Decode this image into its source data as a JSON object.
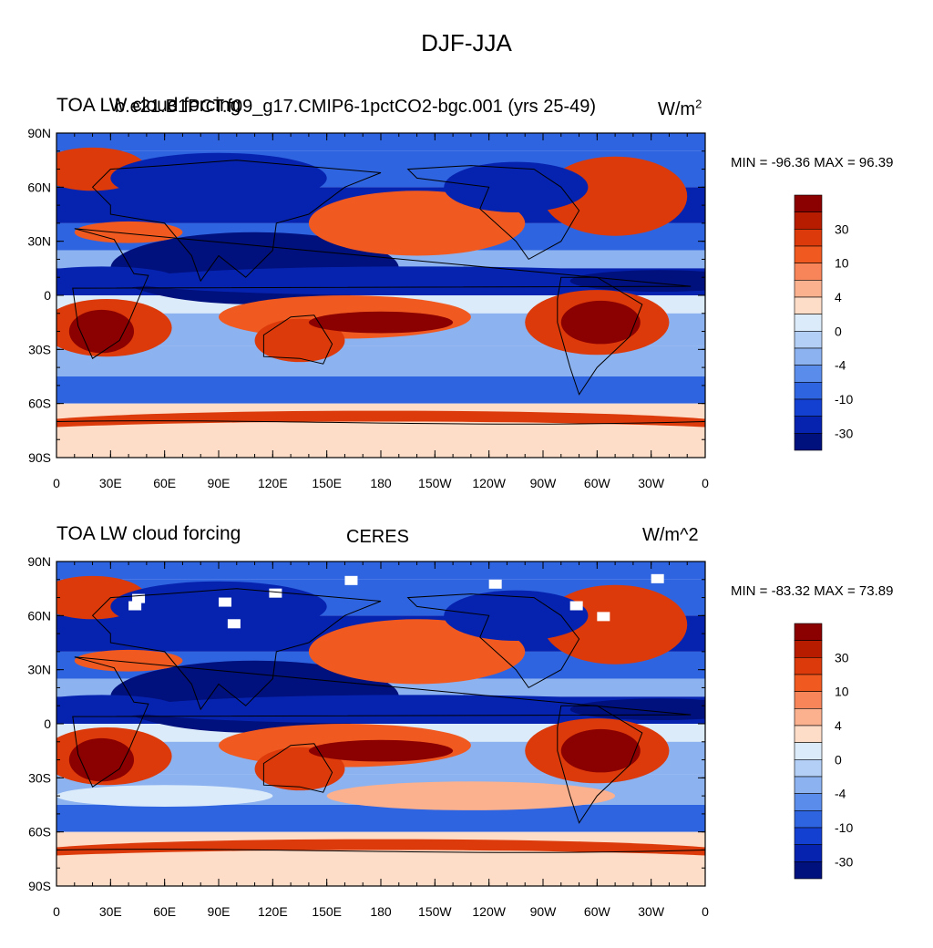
{
  "figure": {
    "title": "DJF-JJA"
  },
  "panels": [
    {
      "left_title": "TOA LW cloud forcing",
      "overlay_title": "b.e21.B1PCT.f09_g17.CMIP6-1pctCO2-bgc.001 (yrs 25-49)",
      "center_title": "",
      "units": "W/m2",
      "minmax": "MIN = -96.36 MAX =  96.39"
    },
    {
      "left_title": "TOA LW cloud forcing",
      "overlay_title": "",
      "center_title": "CERES",
      "units": "W/m^2",
      "minmax": "MIN = -83.32 MAX =  73.89"
    }
  ],
  "axes": {
    "lat_labels": [
      "90N",
      "60N",
      "30N",
      "0",
      "30S",
      "60S",
      "90S"
    ],
    "lon_labels": [
      "0",
      "30E",
      "60E",
      "90E",
      "120E",
      "150E",
      "180",
      "150W",
      "120W",
      "90W",
      "60W",
      "30W",
      "0"
    ]
  },
  "colorbar": {
    "labels": [
      "30",
      "10",
      "4",
      "0",
      "-4",
      "-10",
      "-30"
    ],
    "colors": [
      "#8B0000",
      "#B71C00",
      "#DC3A0A",
      "#F05A20",
      "#F8845A",
      "#FBB08E",
      "#FDDCC8",
      "#DCEBFA",
      "#B4CFF5",
      "#8CB2F0",
      "#5A8CEB",
      "#2F64E0",
      "#1440D2",
      "#0623B0",
      "#00107C"
    ]
  },
  "map_colors": {
    "deep_red": "#8B0000",
    "red": "#DC3A0A",
    "orange": "#F05A20",
    "light_orange": "#FBB08E",
    "pale": "#FDDCC8",
    "pale_blue": "#DCEBFA",
    "light_blue": "#8CB2F0",
    "blue": "#2F64E0",
    "dark_blue": "#0623B0",
    "navy": "#00107C"
  }
}
